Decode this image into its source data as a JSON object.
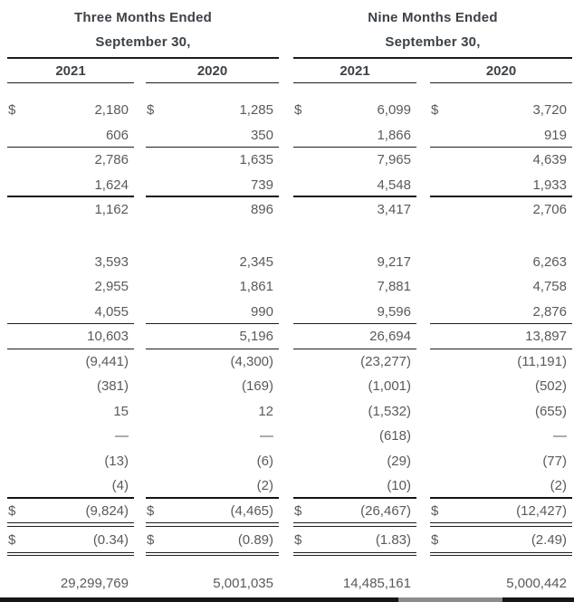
{
  "header": {
    "groups": [
      {
        "line1": "Three Months Ended",
        "line2": "September 30,",
        "years": [
          "2021",
          "2020"
        ]
      },
      {
        "line1": "Nine Months Ended",
        "line2": "September 30,",
        "years": [
          "2021",
          "2020"
        ]
      }
    ]
  },
  "table": {
    "dollar_symbol": "$",
    "columns": [
      "Three Months Ended September 30, 2021",
      "Three Months Ended September 30, 2020",
      "Nine Months Ended September 30, 2021",
      "Nine Months Ended September 30, 2020"
    ],
    "rows": [
      {
        "dollar": true,
        "values": [
          "2,180",
          "1,285",
          "6,099",
          "3,720"
        ],
        "border_bottom": "none"
      },
      {
        "dollar": false,
        "values": [
          "606",
          "350",
          "1,866",
          "919"
        ],
        "border_bottom": "thin"
      },
      {
        "dollar": false,
        "values": [
          "2,786",
          "1,635",
          "7,965",
          "4,639"
        ],
        "border_bottom": "none"
      },
      {
        "dollar": false,
        "values": [
          "1,624",
          "739",
          "4,548",
          "1,933"
        ],
        "border_bottom": "thick"
      },
      {
        "dollar": false,
        "values": [
          "1,162",
          "896",
          "3,417",
          "2,706"
        ],
        "border_bottom": "none"
      },
      {
        "dollar": false,
        "values": [
          "3,593",
          "2,345",
          "9,217",
          "6,263"
        ],
        "border_bottom": "none",
        "spacer_before": 30
      },
      {
        "dollar": false,
        "values": [
          "2,955",
          "1,861",
          "7,881",
          "4,758"
        ],
        "border_bottom": "none"
      },
      {
        "dollar": false,
        "values": [
          "4,055",
          "990",
          "9,596",
          "2,876"
        ],
        "border_bottom": "thin"
      },
      {
        "dollar": false,
        "values": [
          "10,603",
          "5,196",
          "26,694",
          "13,897"
        ],
        "border_bottom": "thin"
      },
      {
        "dollar": false,
        "values": [
          "(9,441)",
          "(4,300)",
          "(23,277)",
          "(11,191)"
        ],
        "border_bottom": "none"
      },
      {
        "dollar": false,
        "values": [
          "(381)",
          "(169)",
          "(1,001)",
          "(502)"
        ],
        "border_bottom": "none"
      },
      {
        "dollar": false,
        "values": [
          "15",
          "12",
          "(1,532)",
          "(655)"
        ],
        "border_bottom": "none"
      },
      {
        "dollar": false,
        "values": [
          "—",
          "—",
          "(618)",
          "—"
        ],
        "border_bottom": "none"
      },
      {
        "dollar": false,
        "values": [
          "(13)",
          "(6)",
          "(29)",
          "(77)"
        ],
        "border_bottom": "none"
      },
      {
        "dollar": false,
        "values": [
          "(4)",
          "(2)",
          "(10)",
          "(2)"
        ],
        "border_bottom": "thick"
      },
      {
        "dollar": true,
        "values": [
          "(9,824)",
          "(4,465)",
          "(26,467)",
          "(12,427)"
        ],
        "border_bottom": "double"
      },
      {
        "dollar": true,
        "values": [
          "(0.34)",
          "(0.89)",
          "(1.83)",
          "(2.49)"
        ],
        "border_bottom": "double"
      },
      {
        "dollar": false,
        "values": [
          "29,299,769",
          "5,001,035",
          "14,485,161",
          "5,000,442"
        ],
        "border_bottom": "none",
        "spacer_before": 20
      }
    ]
  },
  "colors": {
    "header_text": "#3d4247",
    "body_text": "#595a5c",
    "rule": "#1a1a1a",
    "bottom_bar": "#161616",
    "bottom_bar_thumb": "#8c8c8c",
    "background": "#ffffff"
  }
}
